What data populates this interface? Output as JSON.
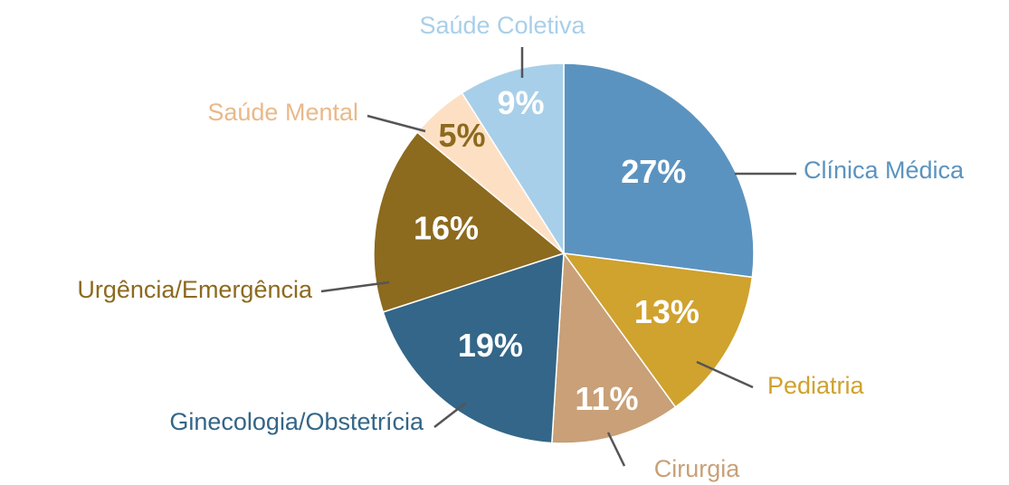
{
  "chart_data": {
    "type": "pie",
    "categories": [
      "Clínica Médica",
      "Pediatria",
      "Cirurgia",
      "Ginecologia/Obstetrícia",
      "Urgência/Emergência",
      "Saúde Mental",
      "Saúde Coletiva"
    ],
    "values": [
      27,
      13,
      11,
      19,
      16,
      5,
      9
    ],
    "value_labels": [
      "27%",
      "13%",
      "11%",
      "19%",
      "16%",
      "5%",
      "9%"
    ],
    "colors": [
      "#5b93c0",
      "#d0a22e",
      "#c9a077",
      "#336688",
      "#8c6a1e",
      "#fde0c4",
      "#a8cfe9"
    ],
    "label_colors": [
      "#5b93c0",
      "#d0a22e",
      "#c9a077",
      "#336688",
      "#8c6a1e",
      "#e9b98a",
      "#a8cfe9"
    ],
    "value_label_colors": [
      "#ffffff",
      "#ffffff",
      "#ffffff",
      "#ffffff",
      "#ffffff",
      "#8c6a1e",
      "#ffffff"
    ]
  }
}
